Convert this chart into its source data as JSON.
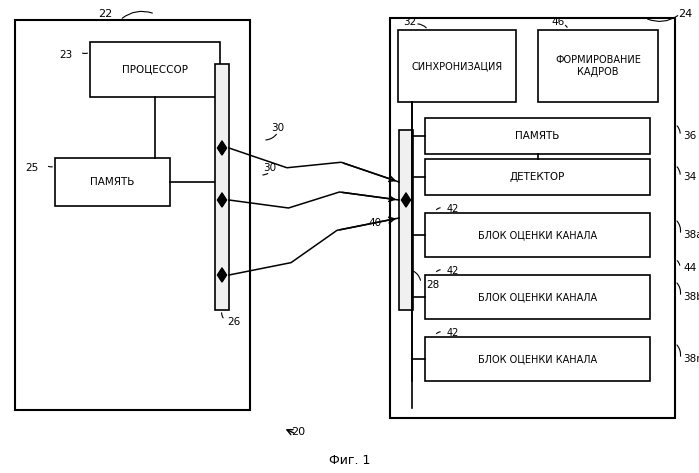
{
  "bg_color": "#ffffff",
  "line_color": "#000000",
  "box_fill": "#ffffff",
  "fig_label": "Фиг. 1",
  "labels": {
    "proc": "ПРОЦЕССОР",
    "mem_left": "ПАМЯТЬ",
    "sync": "СИНХРОНИЗАЦИЯ",
    "frames": "ФОРМИРОВАНИЕ\nКАДРОВ",
    "mem_right": "ПАМЯТЬ",
    "detector": "ДЕТЕКТОР",
    "channel": "БЛОК ОЦЕНКИ КАНАЛА"
  },
  "numbers": {
    "n20": "20",
    "n22": "22",
    "n23": "23",
    "n24": "24",
    "n25": "25",
    "n26": "26",
    "n28": "28",
    "n30a": "30",
    "n30b": "30",
    "n32": "32",
    "n34": "34",
    "n36": "36",
    "n38a": "38a",
    "n38b": "38b",
    "n38n": "38n",
    "n40": "40",
    "n42": "42",
    "n44": "44",
    "n46": "46"
  }
}
